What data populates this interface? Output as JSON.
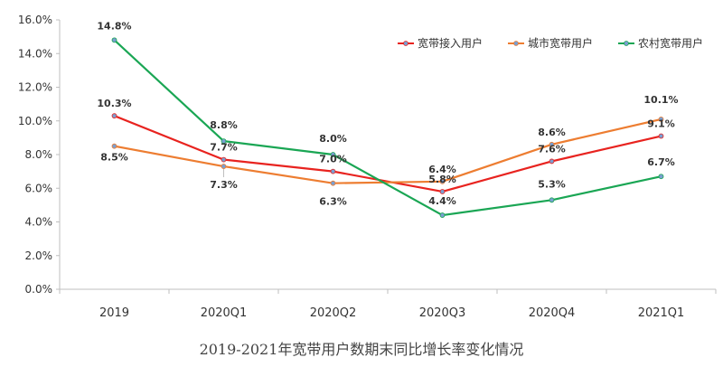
{
  "chart_data": {
    "type": "line",
    "title": "2019-2021年宽带用户数期末同比增长率变化情况",
    "xlabel": "",
    "ylabel": "",
    "categories": [
      "2019",
      "2020Q1",
      "2020Q2",
      "2020Q3",
      "2020Q4",
      "2021Q1"
    ],
    "ylim": [
      0,
      16
    ],
    "yticks": [
      "0.0%",
      "2.0%",
      "4.0%",
      "6.0%",
      "8.0%",
      "10.0%",
      "12.0%",
      "14.0%",
      "16.0%"
    ],
    "grid": false,
    "legend_position": "top-right",
    "series": [
      {
        "name": "宽带接入用户",
        "color": "#e8231f",
        "values": [
          10.3,
          7.7,
          7.0,
          5.8,
          7.6,
          9.1
        ],
        "labels": [
          "10.3%",
          "7.7%",
          "7.0%",
          "5.8%",
          "7.6%",
          "9.1%"
        ]
      },
      {
        "name": "城市宽带用户",
        "color": "#ed7d31",
        "values": [
          8.5,
          7.3,
          6.3,
          6.4,
          8.6,
          10.1
        ],
        "labels": [
          "8.5%",
          "7.3%",
          "6.3%",
          "6.4%",
          "8.6%",
          "10.1%"
        ]
      },
      {
        "name": "农村宽带用户",
        "color": "#1aa654",
        "values": [
          14.8,
          8.8,
          8.0,
          4.4,
          5.3,
          6.7
        ],
        "labels": [
          "14.8%",
          "8.8%",
          "8.0%",
          "4.4%",
          "5.3%",
          "6.7%"
        ]
      }
    ]
  }
}
